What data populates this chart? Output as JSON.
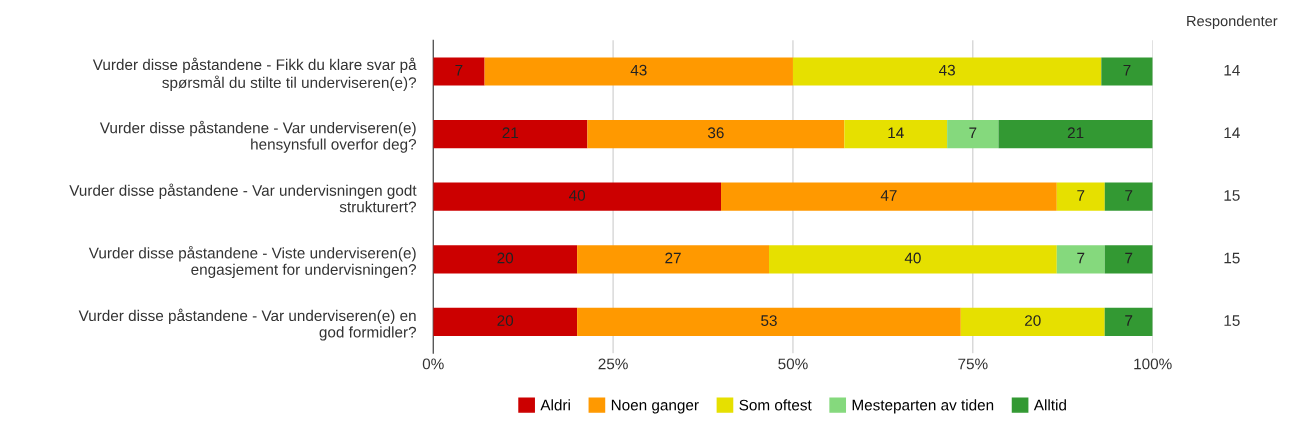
{
  "chart_data": {
    "type": "bar",
    "orientation": "horizontal",
    "stacked": true,
    "categories": [
      "Vurder disse påstandene - Fikk du klare svar på\nspørsmål du stilte til underviseren(e)?",
      "Vurder disse påstandene - Var underviseren(e)\nhensynsfull overfor deg?",
      "Vurder disse påstandene - Var undervisningen godt\nstrukturert?",
      "Vurder disse påstandene - Viste underviseren(e)\nengasjement for undervisningen?",
      "Vurder disse påstandene - Var underviseren(e) en\ngod formidler?"
    ],
    "series": [
      {
        "name": "Aldri",
        "color": "#cc0000",
        "values": [
          7.14,
          21.43,
          40,
          20,
          20
        ],
        "value_labels": [
          "7",
          "21",
          "40",
          "20",
          "20"
        ]
      },
      {
        "name": "Noen ganger",
        "color": "#ff9900",
        "values": [
          42.86,
          35.71,
          46.67,
          26.67,
          53.33
        ],
        "value_labels": [
          "43",
          "36",
          "47",
          "27",
          "53"
        ]
      },
      {
        "name": "Som oftest",
        "color": "#e6e000",
        "values": [
          42.86,
          14.29,
          6.67,
          40,
          20
        ],
        "value_labels": [
          "43",
          "14",
          "7",
          "40",
          "20"
        ]
      },
      {
        "name": "Mesteparten av tiden",
        "color": "#85d97d",
        "values": [
          null,
          7.14,
          null,
          6.67,
          null
        ],
        "value_labels": [
          null,
          "7",
          null,
          "7",
          null
        ]
      },
      {
        "name": "Alltid",
        "color": "#339933",
        "values": [
          7.14,
          21.43,
          6.67,
          6.67,
          6.67
        ],
        "value_labels": [
          "7",
          "21",
          "7",
          "7",
          "7"
        ]
      }
    ],
    "xlim": [
      0,
      100
    ],
    "xticks": [
      {
        "value": 0,
        "label": "0%"
      },
      {
        "value": 25,
        "label": "25%"
      },
      {
        "value": 50,
        "label": "50%"
      },
      {
        "value": 75,
        "label": "75%"
      },
      {
        "value": 100,
        "label": "100%"
      }
    ],
    "grid": "x",
    "legend": "bottom",
    "annotations": [
      "Respondenter",
      "14",
      "14",
      "15",
      "15",
      "15"
    ]
  }
}
